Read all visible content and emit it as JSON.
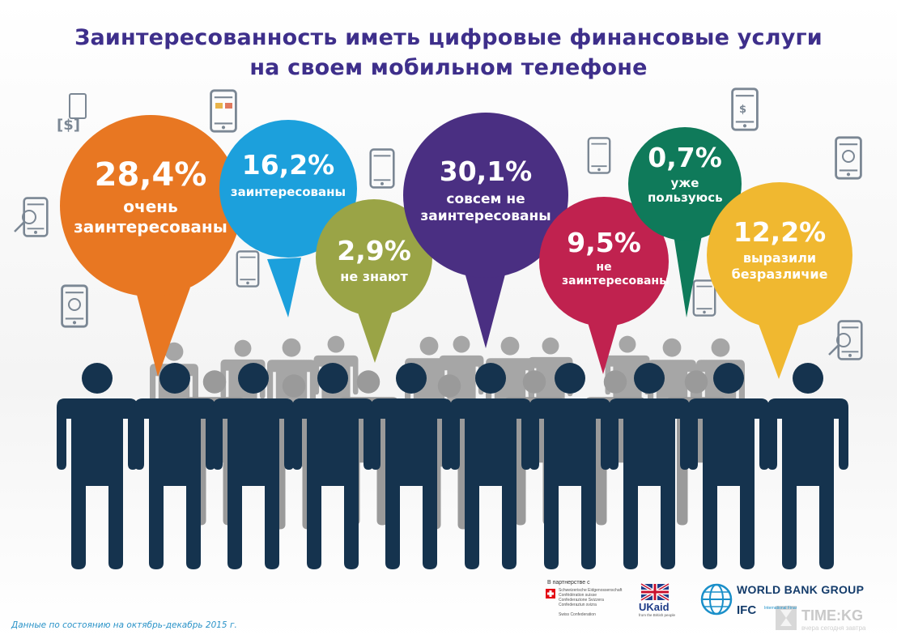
{
  "title": {
    "line1": "Заинтересованность иметь цифровые финансовые услуги",
    "line2": "на своем мобильном телефоне"
  },
  "bubbles": [
    {
      "pct": "28,4%",
      "label": "очень заинтересованы",
      "color": "#e87722"
    },
    {
      "pct": "16,2%",
      "label": "заинтересованы",
      "color": "#1ca0dc"
    },
    {
      "pct": "2,9%",
      "label": "не знают",
      "color": "#9aa446"
    },
    {
      "pct": "30,1%",
      "label": "совсем не заинтересованы",
      "color": "#4a2f82"
    },
    {
      "pct": "9,5%",
      "label": "не заинтересованы",
      "color": "#c0224f"
    },
    {
      "pct": "0,7%",
      "label": "уже пользуюсь",
      "color": "#0f7a5a"
    },
    {
      "pct": "12,2%",
      "label": "выразили безразличие",
      "color": "#f0b830"
    }
  ],
  "colors": {
    "title": "#3e2f8b",
    "person_front": "#15334e",
    "person_back": "#a6a6a6",
    "footnote": "#2a93c8"
  },
  "icons": [
    "money-transfer-icon",
    "card-phone-icon",
    "phone-search-icon",
    "shopping-cart-phone-icon",
    "chat-phone-icon",
    "dollar-search-icon",
    "user-phone-icon"
  ],
  "footer": {
    "note": "Данные по состоянию на октябрь-декабрь 2015 г.",
    "partnership": "В партнерстве с",
    "swiss_lines": [
      "Schweizerische Eidgenossenschaft",
      "Confédération suisse",
      "Confederazione Svizzera",
      "Confederaziun svizra"
    ],
    "swiss_bottom": "Swiss Confederation",
    "ukaid": "UKaid",
    "ukaid_sub": "from the British people",
    "wbg": "WORLD BANK GROUP",
    "ifc": "IFC",
    "ifc_sub": "International Finance Corporation",
    "watermark": "TIME:KG",
    "watermark_sub": "вчера сегодня завтра"
  }
}
